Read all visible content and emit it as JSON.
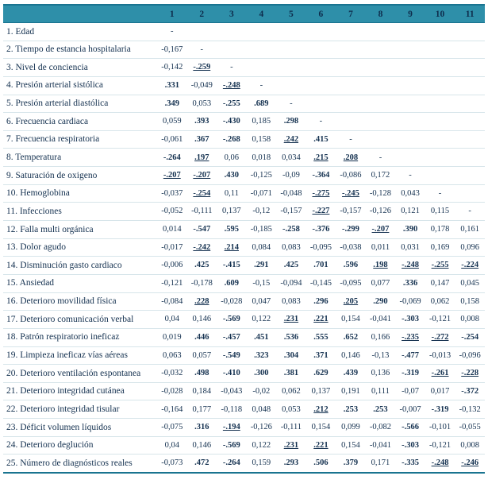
{
  "colors": {
    "header_bg": "#2e8fa9",
    "header_text": "#0e2c4c",
    "body_text": "#13304f",
    "frame_border": "#1a7490",
    "row_line": "#d7e5ea"
  },
  "table": {
    "columns": [
      "1",
      "2",
      "3",
      "4",
      "5",
      "6",
      "7",
      "8",
      "9",
      "10",
      "11"
    ],
    "rows": [
      {
        "label": "1. Edad",
        "cells": [
          [
            "-",
            ""
          ],
          [
            "",
            ""
          ],
          [
            "",
            ""
          ],
          [
            "",
            ""
          ],
          [
            "",
            ""
          ],
          [
            "",
            ""
          ],
          [
            "",
            ""
          ],
          [
            "",
            ""
          ],
          [
            "",
            ""
          ],
          [
            "",
            ""
          ],
          [
            "",
            ""
          ]
        ]
      },
      {
        "label": "2. Tiempo de estancia hospitalaria",
        "cells": [
          [
            "-0,167",
            ""
          ],
          [
            "-",
            ""
          ],
          [
            "",
            ""
          ],
          [
            "",
            ""
          ],
          [
            "",
            ""
          ],
          [
            "",
            ""
          ],
          [
            "",
            ""
          ],
          [
            "",
            ""
          ],
          [
            "",
            ""
          ],
          [
            "",
            ""
          ],
          [
            "",
            ""
          ]
        ]
      },
      {
        "label": "3. Nivel de conciencia",
        "cells": [
          [
            "-0,142",
            ""
          ],
          [
            "-.259",
            "u"
          ],
          [
            "-",
            ""
          ],
          [
            "",
            ""
          ],
          [
            "",
            ""
          ],
          [
            "",
            ""
          ],
          [
            "",
            ""
          ],
          [
            "",
            ""
          ],
          [
            "",
            ""
          ],
          [
            "",
            ""
          ],
          [
            "",
            ""
          ]
        ]
      },
      {
        "label": "4. Presión arterial sistólica",
        "cells": [
          [
            ".331",
            "b"
          ],
          [
            "-0,049",
            ""
          ],
          [
            "-.248",
            "u"
          ],
          [
            "-",
            ""
          ],
          [
            "",
            ""
          ],
          [
            "",
            ""
          ],
          [
            "",
            ""
          ],
          [
            "",
            ""
          ],
          [
            "",
            ""
          ],
          [
            "",
            ""
          ],
          [
            "",
            ""
          ]
        ]
      },
      {
        "label": "5. Presión arterial diastólica",
        "cells": [
          [
            ".349",
            "b"
          ],
          [
            "0,053",
            ""
          ],
          [
            "-.255",
            "b"
          ],
          [
            ".689",
            "b"
          ],
          [
            "-",
            ""
          ],
          [
            "",
            ""
          ],
          [
            "",
            ""
          ],
          [
            "",
            ""
          ],
          [
            "",
            ""
          ],
          [
            "",
            ""
          ],
          [
            "",
            ""
          ]
        ]
      },
      {
        "label": "6. Frecuencia cardiaca",
        "cells": [
          [
            "0,059",
            ""
          ],
          [
            ".393",
            "b"
          ],
          [
            "-.430",
            "b"
          ],
          [
            "0,185",
            ""
          ],
          [
            ".298",
            "b"
          ],
          [
            "-",
            ""
          ],
          [
            "",
            ""
          ],
          [
            "",
            ""
          ],
          [
            "",
            ""
          ],
          [
            "",
            ""
          ],
          [
            "",
            ""
          ]
        ]
      },
      {
        "label": "7. Frecuencia respiratoria",
        "cells": [
          [
            "-0,061",
            ""
          ],
          [
            ".367",
            "b"
          ],
          [
            "-.268",
            "b"
          ],
          [
            "0,158",
            ""
          ],
          [
            ".242",
            "u"
          ],
          [
            ".415",
            "b"
          ],
          [
            "-",
            ""
          ],
          [
            "",
            ""
          ],
          [
            "",
            ""
          ],
          [
            "",
            ""
          ],
          [
            "",
            ""
          ]
        ]
      },
      {
        "label": "8. Temperatura",
        "cells": [
          [
            "-.264",
            "b"
          ],
          [
            ".197",
            "u"
          ],
          [
            "0,06",
            ""
          ],
          [
            "0,018",
            ""
          ],
          [
            "0,034",
            ""
          ],
          [
            ".215",
            "u"
          ],
          [
            ".208",
            "u"
          ],
          [
            "-",
            ""
          ],
          [
            "",
            ""
          ],
          [
            "",
            ""
          ],
          [
            "",
            ""
          ]
        ]
      },
      {
        "label": "9. Saturación de oxigeno",
        "cells": [
          [
            "-.207",
            "u"
          ],
          [
            "-.207",
            "u"
          ],
          [
            ".430",
            "b"
          ],
          [
            "-0,125",
            ""
          ],
          [
            "-0,09",
            ""
          ],
          [
            "-.364",
            "b"
          ],
          [
            "-0,086",
            ""
          ],
          [
            "0,172",
            ""
          ],
          [
            "-",
            ""
          ],
          [
            "",
            ""
          ],
          [
            "",
            ""
          ]
        ]
      },
      {
        "label": "10. Hemoglobina",
        "cells": [
          [
            "-0,037",
            ""
          ],
          [
            "-.254",
            "u"
          ],
          [
            "0,11",
            ""
          ],
          [
            "-0,071",
            ""
          ],
          [
            "-0,048",
            ""
          ],
          [
            "-.275",
            "u"
          ],
          [
            "-.245",
            "u"
          ],
          [
            "-0,128",
            ""
          ],
          [
            "0,043",
            ""
          ],
          [
            "-",
            ""
          ],
          [
            "",
            ""
          ]
        ]
      },
      {
        "label": "11. Infecciones",
        "cells": [
          [
            "-0,052",
            ""
          ],
          [
            "-0,111",
            ""
          ],
          [
            "0,137",
            ""
          ],
          [
            "-0,12",
            ""
          ],
          [
            "-0,157",
            ""
          ],
          [
            "-.227",
            "u"
          ],
          [
            "-0,157",
            ""
          ],
          [
            "-0,126",
            ""
          ],
          [
            "0,121",
            ""
          ],
          [
            "0,115",
            ""
          ],
          [
            "-",
            ""
          ]
        ]
      },
      {
        "label": "12. Falla multi orgánica",
        "cells": [
          [
            "0,014",
            ""
          ],
          [
            "-.547",
            "b"
          ],
          [
            ".595",
            "b"
          ],
          [
            "-0,185",
            ""
          ],
          [
            "-.258",
            "b"
          ],
          [
            "-.376",
            "b"
          ],
          [
            "-.299",
            "b"
          ],
          [
            "-.207",
            "u"
          ],
          [
            ".390",
            "b"
          ],
          [
            "0,178",
            ""
          ],
          [
            "0,161",
            ""
          ]
        ]
      },
      {
        "label": "13. Dolor agudo",
        "cells": [
          [
            "-0,017",
            ""
          ],
          [
            "-.242",
            "u"
          ],
          [
            ".214",
            "u"
          ],
          [
            "0,084",
            ""
          ],
          [
            "0,083",
            ""
          ],
          [
            "-0,095",
            ""
          ],
          [
            "-0,038",
            ""
          ],
          [
            "0,011",
            ""
          ],
          [
            "0,031",
            ""
          ],
          [
            "0,169",
            ""
          ],
          [
            "0,096",
            ""
          ]
        ]
      },
      {
        "label": "14. Disminución gasto cardiaco",
        "cells": [
          [
            "-0,006",
            ""
          ],
          [
            ".425",
            "b"
          ],
          [
            "-.415",
            "b"
          ],
          [
            ".291",
            "b"
          ],
          [
            ".425",
            "b"
          ],
          [
            ".701",
            "b"
          ],
          [
            ".596",
            "b"
          ],
          [
            ".198",
            "u"
          ],
          [
            "-.248",
            "u"
          ],
          [
            "-.255",
            "u"
          ],
          [
            "-.224",
            "u"
          ]
        ]
      },
      {
        "label": "15. Ansiedad",
        "cells": [
          [
            "-0,121",
            ""
          ],
          [
            "-0,178",
            ""
          ],
          [
            ".609",
            "b"
          ],
          [
            "-0,15",
            ""
          ],
          [
            "-0,094",
            ""
          ],
          [
            "-0,145",
            ""
          ],
          [
            "-0,095",
            ""
          ],
          [
            "0,077",
            ""
          ],
          [
            ".336",
            "b"
          ],
          [
            "0,147",
            ""
          ],
          [
            "0,045",
            ""
          ]
        ]
      },
      {
        "label": "16. Deterioro movilidad física",
        "cells": [
          [
            "-0,084",
            ""
          ],
          [
            ".228",
            "u"
          ],
          [
            "-0,028",
            ""
          ],
          [
            "0,047",
            ""
          ],
          [
            "0,083",
            ""
          ],
          [
            ".296",
            "b"
          ],
          [
            ".205",
            "u"
          ],
          [
            ".290",
            "b"
          ],
          [
            "-0,069",
            ""
          ],
          [
            "0,062",
            ""
          ],
          [
            "0,158",
            ""
          ]
        ]
      },
      {
        "label": "17. Deterioro comunicación verbal",
        "cells": [
          [
            "0,04",
            ""
          ],
          [
            "0,146",
            ""
          ],
          [
            "-.569",
            "b"
          ],
          [
            "0,122",
            ""
          ],
          [
            ".231",
            "u"
          ],
          [
            ".221",
            "u"
          ],
          [
            "0,154",
            ""
          ],
          [
            "-0,041",
            ""
          ],
          [
            "-.303",
            "b"
          ],
          [
            "-0,121",
            ""
          ],
          [
            "0,008",
            ""
          ]
        ]
      },
      {
        "label": "18. Patrón respiratorio ineficaz",
        "cells": [
          [
            "0,019",
            ""
          ],
          [
            ".446",
            "b"
          ],
          [
            "-.457",
            "b"
          ],
          [
            ".451",
            "b"
          ],
          [
            ".536",
            "b"
          ],
          [
            ".555",
            "b"
          ],
          [
            ".652",
            "b"
          ],
          [
            "0,166",
            ""
          ],
          [
            "-.235",
            "u"
          ],
          [
            "-.272",
            "u"
          ],
          [
            "-.254",
            "b"
          ]
        ]
      },
      {
        "label": "19. Limpieza ineficaz vías aéreas",
        "cells": [
          [
            "0,063",
            ""
          ],
          [
            "0,057",
            ""
          ],
          [
            "-.549",
            "b"
          ],
          [
            ".323",
            "b"
          ],
          [
            ".304",
            "b"
          ],
          [
            ".371",
            "b"
          ],
          [
            "0,146",
            ""
          ],
          [
            "-0,13",
            ""
          ],
          [
            "-.477",
            "b"
          ],
          [
            "-0,013",
            ""
          ],
          [
            "-0,096",
            ""
          ]
        ]
      },
      {
        "label": "20. Deterioro ventilación espontanea",
        "cells": [
          [
            "-0,032",
            ""
          ],
          [
            ".498",
            "b"
          ],
          [
            "-.410",
            "b"
          ],
          [
            ".300",
            "b"
          ],
          [
            ".381",
            "b"
          ],
          [
            ".629",
            "b"
          ],
          [
            ".439",
            "b"
          ],
          [
            "0,136",
            ""
          ],
          [
            "-.319",
            "b"
          ],
          [
            "-.261",
            "u"
          ],
          [
            "-.228",
            "u"
          ]
        ]
      },
      {
        "label": "21. Deterioro integridad cutánea",
        "cells": [
          [
            "-0,028",
            ""
          ],
          [
            "0,184",
            ""
          ],
          [
            "-0,043",
            ""
          ],
          [
            "-0,02",
            ""
          ],
          [
            "0,062",
            ""
          ],
          [
            "0,137",
            ""
          ],
          [
            "0,191",
            ""
          ],
          [
            "0,111",
            ""
          ],
          [
            "-0,07",
            ""
          ],
          [
            "0,017",
            ""
          ],
          [
            "-.372",
            "b"
          ]
        ]
      },
      {
        "label": "22. Deterioro integridad tisular",
        "cells": [
          [
            "-0,164",
            ""
          ],
          [
            "0,177",
            ""
          ],
          [
            "-0,118",
            ""
          ],
          [
            "0,048",
            ""
          ],
          [
            "0,053",
            ""
          ],
          [
            ".212",
            "u"
          ],
          [
            ".253",
            "b"
          ],
          [
            ".253",
            "b"
          ],
          [
            "-0,007",
            ""
          ],
          [
            "-.319",
            "b"
          ],
          [
            "-0,132",
            ""
          ]
        ]
      },
      {
        "label": "23. Déficit volumen líquidos",
        "cells": [
          [
            "-0,075",
            ""
          ],
          [
            ".316",
            "b"
          ],
          [
            "-.194",
            "u"
          ],
          [
            "-0,126",
            ""
          ],
          [
            "-0,111",
            ""
          ],
          [
            "0,154",
            ""
          ],
          [
            "0,099",
            ""
          ],
          [
            "-0,082",
            ""
          ],
          [
            "-.566",
            "b"
          ],
          [
            "-0,101",
            ""
          ],
          [
            "-0,055",
            ""
          ]
        ]
      },
      {
        "label": "24. Deterioro deglución",
        "cells": [
          [
            "0,04",
            ""
          ],
          [
            "0,146",
            ""
          ],
          [
            "-.569",
            "b"
          ],
          [
            "0,122",
            ""
          ],
          [
            ".231",
            "u"
          ],
          [
            ".221",
            "u"
          ],
          [
            "0,154",
            ""
          ],
          [
            "-0,041",
            ""
          ],
          [
            "-.303",
            "b"
          ],
          [
            "-0,121",
            ""
          ],
          [
            "0,008",
            ""
          ]
        ]
      },
      {
        "label": "25. Número de diagnósticos reales",
        "cells": [
          [
            "-0,073",
            ""
          ],
          [
            ".472",
            "b"
          ],
          [
            "-.264",
            "b"
          ],
          [
            "0,159",
            ""
          ],
          [
            ".293",
            "b"
          ],
          [
            ".506",
            "b"
          ],
          [
            ".379",
            "b"
          ],
          [
            "0,171",
            ""
          ],
          [
            "-.335",
            "b"
          ],
          [
            "-.248",
            "u"
          ],
          [
            "-.246",
            "u"
          ]
        ]
      }
    ]
  }
}
